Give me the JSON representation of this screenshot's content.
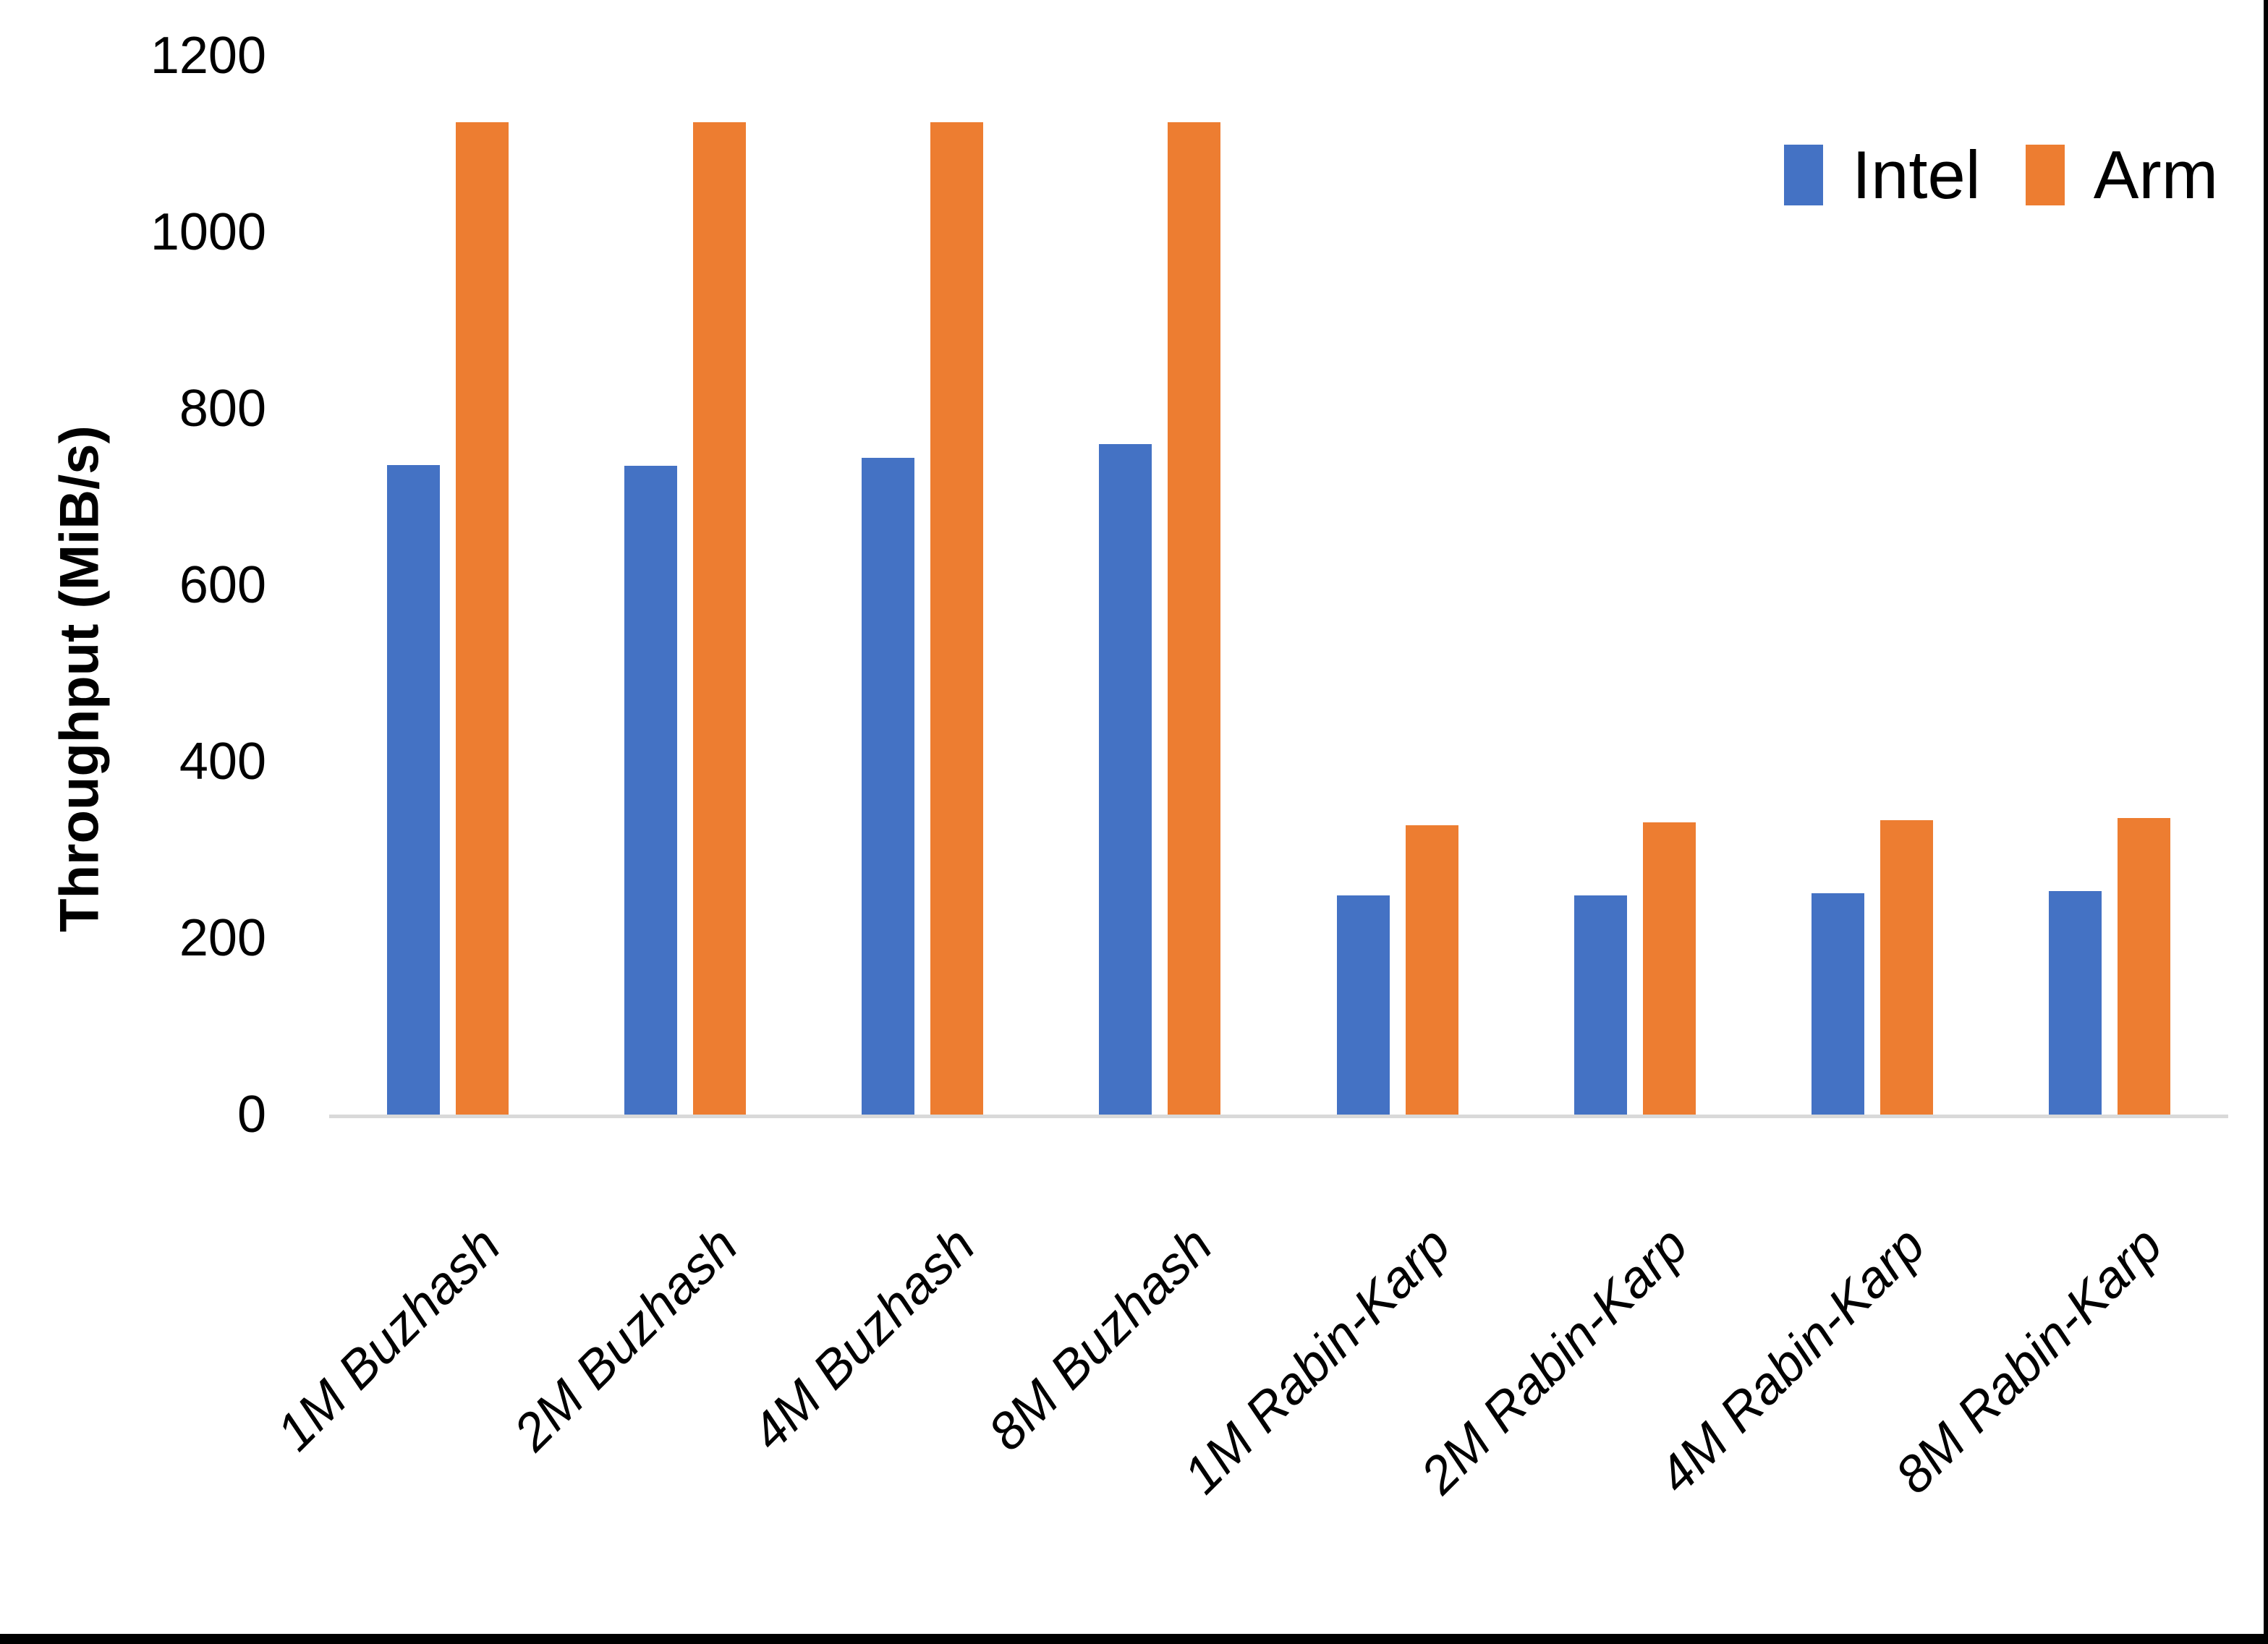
{
  "chart_data": {
    "type": "bar",
    "title": "",
    "xlabel": "",
    "ylabel": "Throughput (MiB/s)",
    "categories": [
      "1M Buzhash",
      "2M Buzhash",
      "4M Buzhash",
      "8M Buzhash",
      "1M Rabin-Karp",
      "2M Rabin-Karp",
      "4M Rabin-Karp",
      "8M Rabin-Karp"
    ],
    "series": [
      {
        "name": "Intel",
        "color": "#4472C4",
        "values": [
          736,
          735,
          744,
          760,
          248,
          248,
          251,
          253
        ]
      },
      {
        "name": "Arm",
        "color": "#ED7D31",
        "values": [
          1125,
          1125,
          1125,
          1125,
          328,
          331,
          334,
          336
        ]
      }
    ],
    "ylim": [
      0,
      1200
    ],
    "y_ticks": [
      0,
      200,
      400,
      600,
      800,
      1000,
      1200
    ],
    "grid": false,
    "legend_position": "top-right",
    "axis_line_color": "#D9D9D9",
    "text_color": "#000000",
    "background_color": "#FFFFFF",
    "edge_color": "#000000"
  }
}
